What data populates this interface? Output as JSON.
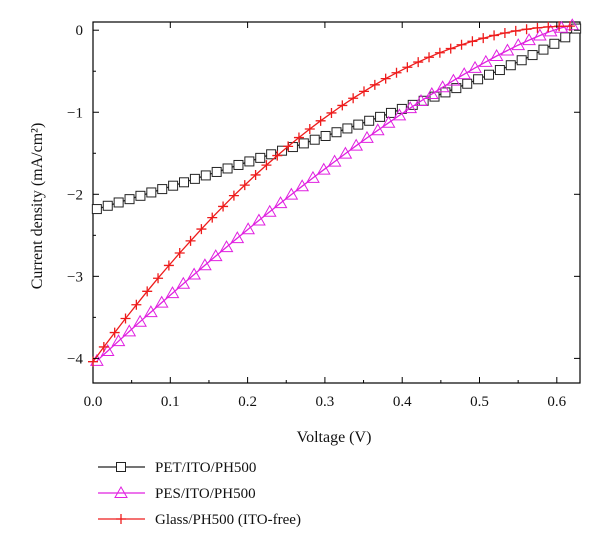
{
  "chart_data": {
    "type": "line",
    "title": "",
    "xlabel": "Voltage (V)",
    "ylabel": "Current density (mA/cm²)",
    "xlim": [
      0.0,
      0.63
    ],
    "ylim": [
      -4.3,
      0.1
    ],
    "xticks": [
      0.0,
      0.1,
      0.2,
      0.3,
      0.4,
      0.5,
      0.6
    ],
    "xtick_labels": [
      "0.0",
      "0.1",
      "0.2",
      "0.3",
      "0.4",
      "0.5",
      "0.6"
    ],
    "yticks": [
      0,
      -1,
      -2,
      -3,
      -4
    ],
    "ytick_labels": [
      "0",
      "−1",
      "−2",
      "−3",
      "−4"
    ],
    "grid": false,
    "legend_position": "below",
    "series": [
      {
        "name": "PET/ITO/PH500",
        "marker": "square",
        "color": "#222222",
        "start": [
          0.005,
          -2.18
        ],
        "end": [
          0.625,
          0.02
        ],
        "shape_power": 0.8
      },
      {
        "name": "PES/ITO/PH500",
        "marker": "triangle",
        "color": "#e020e0",
        "start": [
          0.005,
          -4.03
        ],
        "end": [
          0.62,
          0.06
        ],
        "shape_power": 1.3
      },
      {
        "name": "Glass/PH500 (ITO-free)",
        "marker": "plus",
        "color": "#ee1c1c",
        "start": [
          0.0,
          -4.04
        ],
        "end": [
          0.617,
          0.05
        ],
        "shape_power": 1.95
      }
    ]
  }
}
